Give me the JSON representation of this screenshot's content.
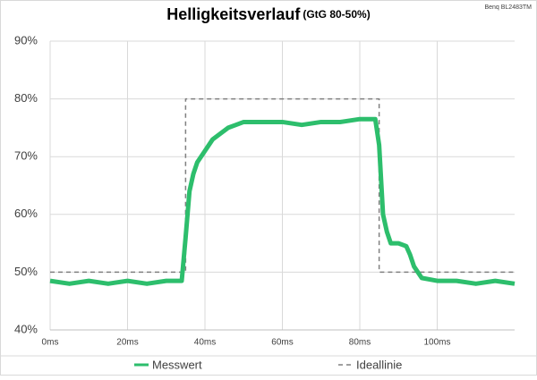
{
  "chart_data": {
    "type": "line",
    "title": "Helligkeitsverlauf",
    "subtitle": "(GtG 80-50%)",
    "annotation": "Benq BL2483TM",
    "xlim": [
      0,
      120
    ],
    "ylim": [
      40,
      90
    ],
    "xticks": [
      {
        "value": 0,
        "label": "0ms"
      },
      {
        "value": 20,
        "label": "20ms"
      },
      {
        "value": 40,
        "label": "40ms"
      },
      {
        "value": 60,
        "label": "60ms"
      },
      {
        "value": 80,
        "label": "80ms"
      },
      {
        "value": 100,
        "label": "100ms"
      }
    ],
    "yticks": [
      {
        "value": 40,
        "label": "40%"
      },
      {
        "value": 50,
        "label": "50%"
      },
      {
        "value": 60,
        "label": "60%"
      },
      {
        "value": 70,
        "label": "70%"
      },
      {
        "value": 80,
        "label": "80%"
      },
      {
        "value": 90,
        "label": "90%"
      }
    ],
    "grid": true,
    "legend": "bottom",
    "series": [
      {
        "name": "Messwert",
        "color": "#2dbe6c",
        "dash": false,
        "x": [
          0,
          5,
          10,
          15,
          20,
          25,
          30,
          34,
          35,
          36,
          37,
          38,
          40,
          42,
          44,
          46,
          48,
          50,
          55,
          60,
          65,
          70,
          75,
          80,
          84,
          85,
          86,
          87,
          88,
          90,
          92,
          93,
          94,
          95,
          96,
          100,
          105,
          110,
          115,
          120
        ],
        "values": [
          48.5,
          48,
          48.5,
          48,
          48.5,
          48,
          48.5,
          48.5,
          56,
          64,
          67,
          69,
          71,
          73,
          74,
          75,
          75.5,
          76,
          76,
          76,
          75.5,
          76,
          76,
          76.5,
          76.5,
          72,
          60,
          57,
          55,
          55,
          54.5,
          53,
          51,
          50,
          49,
          48.5,
          48.5,
          48,
          48.5,
          48
        ]
      },
      {
        "name": "Ideallinie",
        "color": "#808080",
        "dash": true,
        "x": [
          0,
          35,
          35,
          85,
          85,
          120
        ],
        "values": [
          50,
          50,
          80,
          80,
          50,
          50
        ]
      }
    ]
  }
}
